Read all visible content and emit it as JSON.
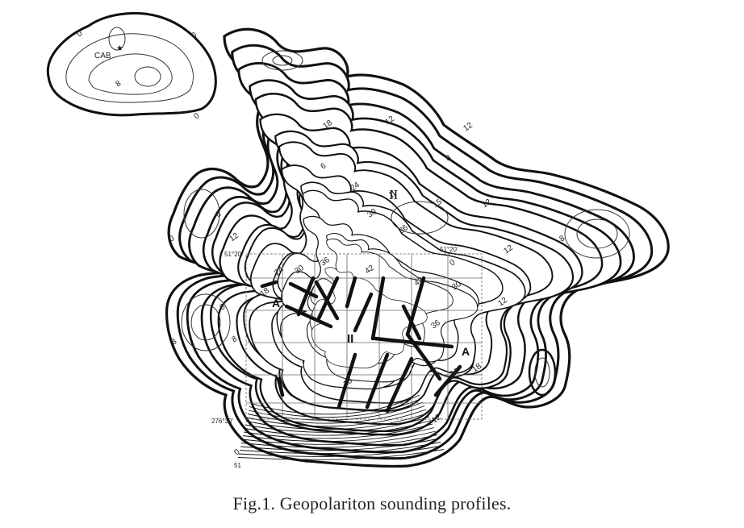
{
  "caption": "Fig.1. Geopolariton sounding profiles.",
  "colors": {
    "ink": "#111111",
    "contour": "#333333",
    "grid": "#666666",
    "background": "#ffffff"
  },
  "labels": {
    "station": "CAB",
    "region_north": "II",
    "region_center": "II",
    "profile_a": "A",
    "profile_a_prime": "A'"
  },
  "depth_labels": [
    "0",
    "0",
    "0",
    "8",
    "12",
    "18",
    "12",
    "8",
    "6",
    "24",
    "II",
    "30",
    "36",
    "15",
    "12",
    "12",
    "8",
    "6",
    "8",
    "12",
    "18",
    "24",
    "30",
    "36",
    "42",
    "42",
    "30",
    "12",
    "36",
    "24",
    "18",
    "6",
    "8",
    "0",
    "0",
    "18",
    "12",
    "0"
  ],
  "coord_labels": [
    "51°20'",
    "51°20'",
    "276°30'",
    "51"
  ]
}
